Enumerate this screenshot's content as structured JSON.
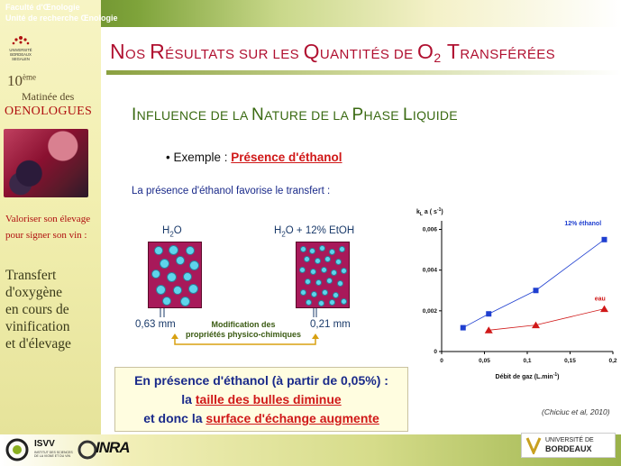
{
  "header": {
    "faculty": "Faculté d'Œnologie",
    "unit": "Unité de recherche Œnologie"
  },
  "sidebar": {
    "logo_text": "UNIVERSITÉ BORDEAUX SEGALEN",
    "matinee_number": "10",
    "matinee_sup": "ème",
    "matinee_line2": "Matinée des",
    "matinee_line3": "OENOLOGUES",
    "slogan_line1": "Valoriser son élevage",
    "slogan_line2": "pour signer son vin :",
    "title_lines": [
      "Transfert",
      "d'oxygène",
      "en cours de",
      "vinification",
      "et d'élevage"
    ]
  },
  "slide": {
    "title_parts": [
      "N",
      "OS ",
      "R",
      "ÉSULTATS SUR LES ",
      "Q",
      "UANTITÉS DE ",
      "O",
      "2",
      " T",
      "RANSFÉRÉES"
    ],
    "subtitle_parts": [
      "I",
      "NFLUENCE DE LA ",
      "N",
      "ATURE DE LA ",
      "P",
      "HASE ",
      "L",
      "IQUIDE"
    ],
    "example_label": "• Exemple : ",
    "example_value": "Présence d'éthanol",
    "favor_text": "La présence d'éthanol favorise le transfert :",
    "left_box_label": "H",
    "left_box_label_sub": "2",
    "left_box_label_tail": "O",
    "right_box_label": "H",
    "right_box_label_sub": "2",
    "right_box_label_tail": "O + 12% EtOH",
    "left_size": "0,63 mm",
    "right_size": "0,21 mm",
    "modification_line1": "Modification des",
    "modification_line2": "propriétés physico-chimiques",
    "conclusion_line1": "En présence d'éthanol (à partir de 0,05%) :",
    "conclusion_line2_a": "la ",
    "conclusion_line2_b": "taille des bulles diminue",
    "conclusion_line3_a": "et donc la ",
    "conclusion_line3_b": "surface d'échange augmente",
    "citation": "(Chiciuc et al, 2010)"
  },
  "footer": {
    "isvv": "ISVV",
    "isvv_sub": "INSTITUT DES SCIENCES DE LA VIGNE ET DU VIN",
    "inra": "INRA",
    "univ_line1": "UNIVERSITÉ DE",
    "univ_line2": "BORDEAUX"
  },
  "chart_data": {
    "type": "scatter",
    "ylabel_main": "k",
    "ylabel_sub": "L",
    "ylabel_tail": " a ( s",
    "ylabel_sup": "-1",
    "ylabel_end": ")",
    "xlabel": "Débit de gaz (L.min",
    "xlabel_sup": "-1",
    "xlabel_end": ")",
    "x_ticks": [
      "0",
      "0,05",
      "0,1",
      "0,15",
      "0,2"
    ],
    "y_ticks": [
      "0",
      "0,002",
      "0,004",
      "0,006"
    ],
    "xlim": [
      0,
      0.2
    ],
    "ylim": [
      0,
      0.0062
    ],
    "series": [
      {
        "name": "12% éthanol",
        "color": "#1f3fd0",
        "marker": "square",
        "x": [
          0.025,
          0.055,
          0.11,
          0.19
        ],
        "y": [
          0.00117,
          0.00185,
          0.003,
          0.0055
        ]
      },
      {
        "name": "eau",
        "color": "#d01818",
        "marker": "triangle",
        "x": [
          0.055,
          0.11,
          0.19
        ],
        "y": [
          0.00105,
          0.0013,
          0.0021
        ]
      }
    ]
  }
}
